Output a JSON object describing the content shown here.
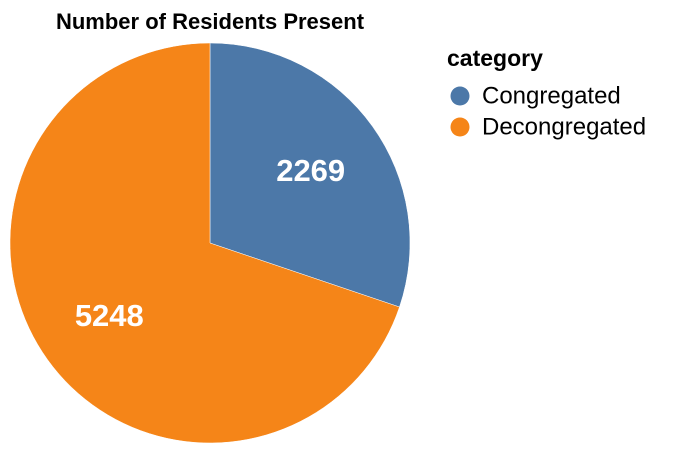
{
  "chart_data": {
    "type": "pie",
    "title": "Number of Residents Present",
    "legend": {
      "title": "category",
      "placement": "right"
    },
    "slices": [
      {
        "category": "Congregated",
        "value": 2269,
        "color": "#4c78a8"
      },
      {
        "category": "Decongregated",
        "value": 5248,
        "color": "#f58518"
      }
    ]
  }
}
